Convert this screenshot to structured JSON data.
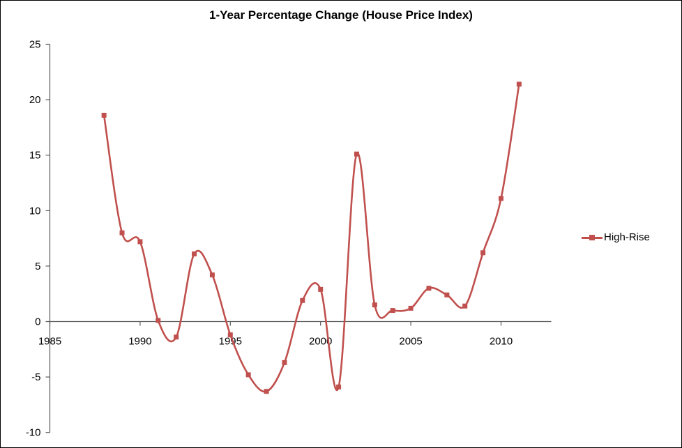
{
  "chart_data": {
    "type": "line",
    "title": "1-Year Percentage Change (House Price Index)",
    "xlabel": "",
    "ylabel": "",
    "x": [
      1988,
      1989,
      1990,
      1991,
      1992,
      1993,
      1994,
      1995,
      1996,
      1997,
      1998,
      1999,
      2000,
      2001,
      2002,
      2003,
      2004,
      2005,
      2006,
      2007,
      2008,
      2009,
      2010,
      2011
    ],
    "series": [
      {
        "name": "High-Rise",
        "color": "#C0504D",
        "values": [
          18.6,
          8.0,
          7.2,
          0.1,
          -1.4,
          6.1,
          4.2,
          -1.2,
          -4.8,
          -6.3,
          -3.7,
          1.9,
          2.9,
          -5.9,
          15.1,
          1.5,
          1.0,
          1.2,
          3.0,
          2.4,
          1.4,
          6.2,
          11.1,
          21.4
        ]
      }
    ],
    "x_ticks": [
      1985,
      1990,
      1995,
      2000,
      2005,
      2010
    ],
    "y_ticks": [
      25,
      20,
      15,
      10,
      5,
      0,
      -5,
      -10
    ],
    "xlim": [
      1985,
      2012.8
    ],
    "ylim": [
      -10,
      25
    ],
    "grid": false,
    "smooth": true,
    "marker": "square",
    "legend_position": "right",
    "axis_color": "#595959",
    "text_color": "#000000"
  }
}
